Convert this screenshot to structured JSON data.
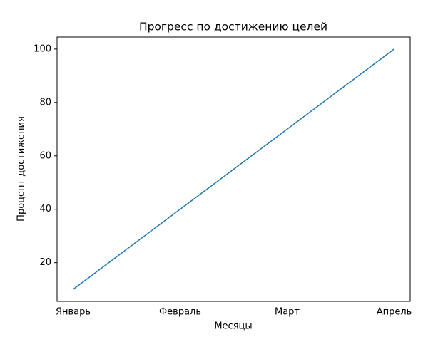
{
  "chart_data": {
    "type": "line",
    "title": "Прогресс по достижению целей",
    "x_label": "Месяцы",
    "y_label": "Процент достижения",
    "categories": [
      "Январь",
      "Февраль",
      "Март",
      "Апрель"
    ],
    "values": [
      10,
      40,
      70,
      100
    ],
    "color": "#1f77b4",
    "ylim": [
      5.5,
      104.5
    ],
    "yticks": [
      20,
      40,
      60,
      80,
      100
    ],
    "grid": false
  }
}
